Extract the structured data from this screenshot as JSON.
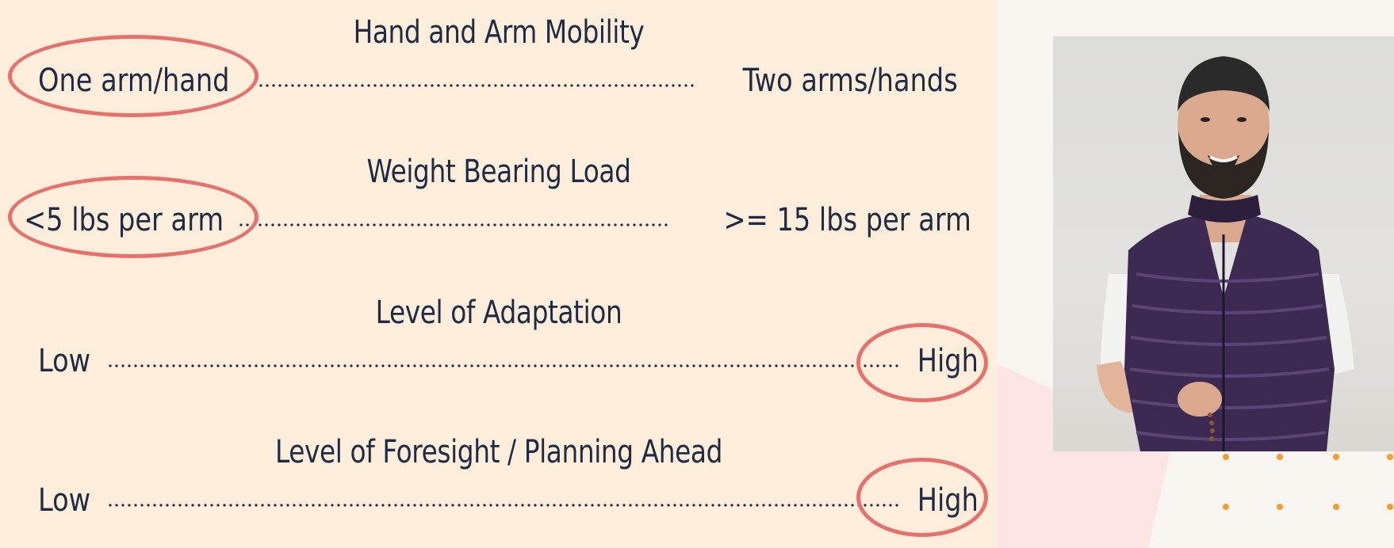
{
  "scales": [
    {
      "title": "Hand and Arm Mobility",
      "left_label": "One arm/hand",
      "right_label": "Two arms/hands",
      "selected": "left"
    },
    {
      "title": "Weight Bearing Load",
      "left_label": "<5 lbs per arm",
      "right_label": ">= 15 lbs per arm",
      "selected": "left"
    },
    {
      "title": "Level of Adaptation",
      "left_label": "Low",
      "right_label": "High",
      "selected": "right"
    },
    {
      "title": "Level of Foresight / Planning Ahead",
      "left_label": "Low",
      "right_label": "High",
      "selected": "right"
    }
  ],
  "colors": {
    "left_panel_bg": "#fdeedb",
    "right_panel_bg": "#f8f4ef",
    "text": "#1f2a44",
    "circle": "#e8706c",
    "dot_accent": "#f0a030",
    "pink_shape": "#fde4e4"
  },
  "photo": {
    "icon": "person-photo"
  }
}
